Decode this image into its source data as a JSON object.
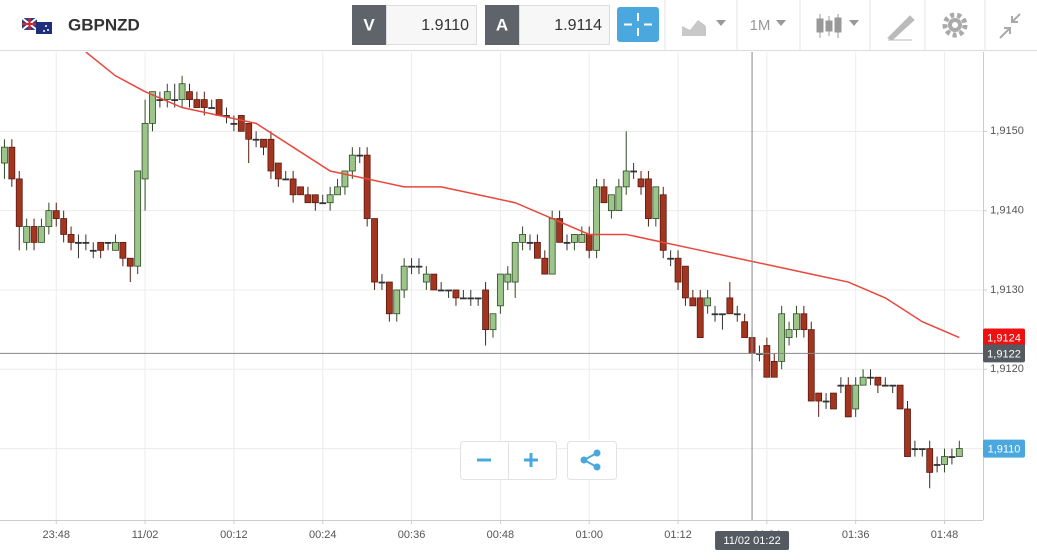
{
  "toolbar": {
    "symbol": "GBPNZD",
    "bid_label": "V",
    "bid": "1.9110",
    "ask_label": "A",
    "ask": "1.9114",
    "timeframe": "1M"
  },
  "chart_data": {
    "type": "candlestick",
    "xlim": [
      -19.6,
      113.2
    ],
    "ylim": [
      1.9101,
      1.916
    ],
    "xticks": [
      {
        "value": -12,
        "label": "23:48"
      },
      {
        "value": 0,
        "label": "11/02"
      },
      {
        "value": 12,
        "label": "00:12"
      },
      {
        "value": 24,
        "label": "00:24"
      },
      {
        "value": 36,
        "label": "00:36"
      },
      {
        "value": 48,
        "label": "00:48"
      },
      {
        "value": 60,
        "label": "01:00"
      },
      {
        "value": 72,
        "label": "01:12"
      },
      {
        "value": 84,
        "label": "01:24"
      },
      {
        "value": 96,
        "label": "01:36"
      },
      {
        "value": 108,
        "label": "01:48"
      }
    ],
    "yticks": [
      {
        "value": 1.911,
        "label": "1,9110"
      },
      {
        "value": 1.912,
        "label": "1,9120"
      },
      {
        "value": 1.913,
        "label": "1,9130"
      },
      {
        "value": 1.914,
        "label": "1,9140"
      },
      {
        "value": 1.915,
        "label": "1,9150"
      }
    ],
    "grid": true,
    "series": [
      {
        "up_color": "#9cc58a",
        "down_color": "#a3341f",
        "x": [
          -19,
          -18,
          -17,
          -16,
          -15,
          -14,
          -13,
          -12,
          -11,
          -10,
          -9,
          -8,
          -7,
          -6,
          -5,
          -4,
          -3,
          -2,
          -1,
          0,
          1,
          2,
          3,
          4,
          5,
          6,
          7,
          8,
          9,
          10,
          11,
          12,
          13,
          14,
          15,
          16,
          17,
          18,
          19,
          20,
          21,
          22,
          23,
          24,
          25,
          26,
          27,
          28,
          29,
          30,
          31,
          32,
          33,
          34,
          35,
          36,
          37,
          38,
          39,
          40,
          41,
          42,
          43,
          44,
          45,
          46,
          47,
          48,
          49,
          50,
          51,
          52,
          53,
          54,
          55,
          56,
          57,
          58,
          59,
          60,
          61,
          62,
          63,
          64,
          65,
          66,
          67,
          68,
          69,
          70,
          71,
          72,
          73,
          74,
          75,
          76,
          77,
          78,
          79,
          80,
          81,
          82,
          83,
          84,
          85,
          86,
          87,
          88,
          89,
          90,
          91,
          92,
          93,
          94,
          95,
          96,
          97,
          98,
          99,
          100,
          101,
          102,
          103,
          104,
          105,
          106,
          107,
          108,
          109,
          110
        ],
        "open": [
          1.9146,
          1.9148,
          1.9144,
          1.9136,
          1.9138,
          1.9136,
          1.9138,
          1.914,
          1.9139,
          1.9137,
          1.9136,
          1.9136,
          1.9135,
          1.9136,
          1.9136,
          1.9135,
          1.9136,
          1.9134,
          1.9133,
          1.9144,
          1.9151,
          1.9154,
          1.9154,
          1.9154,
          1.9154,
          1.9155,
          1.9154,
          1.9154,
          1.9153,
          1.9154,
          1.9152,
          1.9151,
          1.9152,
          1.9151,
          1.9149,
          1.9149,
          1.9149,
          1.9146,
          1.9144,
          1.9144,
          1.9143,
          1.9142,
          1.9142,
          1.9141,
          1.9141,
          1.9142,
          1.9143,
          1.9145,
          1.9147,
          1.9147,
          1.9139,
          1.9131,
          1.9131,
          1.9127,
          1.913,
          1.9133,
          1.9133,
          1.9131,
          1.9132,
          1.913,
          1.913,
          1.913,
          1.9129,
          1.9129,
          1.9129,
          1.913,
          1.9125,
          1.9128,
          1.9131,
          1.9131,
          1.9136,
          1.9136,
          1.9136,
          1.9134,
          1.9132,
          1.9139,
          1.9136,
          1.9136,
          1.9136,
          1.9137,
          1.9135,
          1.9143,
          1.914,
          1.914,
          1.9143,
          1.9145,
          1.9144,
          1.9144,
          1.9139,
          1.9142,
          1.9134,
          1.9134,
          1.9133,
          1.9129,
          1.9129,
          1.9128,
          1.9127,
          1.9127,
          1.9129,
          1.9127,
          1.9126,
          1.9124,
          1.9122,
          1.9123,
          1.9121,
          1.9121,
          1.9124,
          1.9125,
          1.9127,
          1.9125,
          1.9117,
          1.9116,
          1.9117,
          1.9118,
          1.9118,
          1.9115,
          1.9118,
          1.9119,
          1.9119,
          1.9118,
          1.9118,
          1.9118,
          1.9115,
          1.911,
          1.911,
          1.911,
          1.9108,
          1.9108,
          1.9109,
          1.9109
        ],
        "high": [
          1.9149,
          1.9149,
          1.9145,
          1.9139,
          1.9139,
          1.9139,
          1.9141,
          1.9141,
          1.914,
          1.9138,
          1.9137,
          1.9137,
          1.9136,
          1.9136,
          1.9136,
          1.9137,
          1.9136,
          1.9134,
          1.9145,
          1.9154,
          1.9155,
          1.9155,
          1.9156,
          1.9156,
          1.9157,
          1.9156,
          1.9155,
          1.9155,
          1.9154,
          1.9154,
          1.9153,
          1.9152,
          1.9152,
          1.9151,
          1.915,
          1.9149,
          1.915,
          1.9146,
          1.9145,
          1.9145,
          1.9143,
          1.9143,
          1.9142,
          1.9142,
          1.9143,
          1.9144,
          1.9145,
          1.9148,
          1.9148,
          1.9148,
          1.9139,
          1.9132,
          1.9131,
          1.913,
          1.9134,
          1.9134,
          1.9134,
          1.9133,
          1.9132,
          1.9131,
          1.913,
          1.913,
          1.913,
          1.913,
          1.9129,
          1.9131,
          1.9127,
          1.9132,
          1.9133,
          1.9136,
          1.9138,
          1.9137,
          1.9137,
          1.9135,
          1.914,
          1.914,
          1.9137,
          1.9137,
          1.9138,
          1.9138,
          1.9144,
          1.9144,
          1.9142,
          1.9144,
          1.915,
          1.9146,
          1.9145,
          1.9145,
          1.9143,
          1.9143,
          1.9135,
          1.9135,
          1.9133,
          1.913,
          1.913,
          1.913,
          1.9128,
          1.9127,
          1.9131,
          1.9128,
          1.9127,
          1.9125,
          1.9123,
          1.9124,
          1.9122,
          1.9128,
          1.9126,
          1.9128,
          1.9128,
          1.9126,
          1.9117,
          1.9117,
          1.9117,
          1.9119,
          1.9119,
          1.9119,
          1.912,
          1.912,
          1.9119,
          1.9119,
          1.9118,
          1.9118,
          1.9116,
          1.9111,
          1.911,
          1.9111,
          1.9109,
          1.911,
          1.911,
          1.9111
        ],
        "low": [
          1.9144,
          1.9143,
          1.9135,
          1.9135,
          1.9135,
          1.9136,
          1.9137,
          1.9138,
          1.9136,
          1.9135,
          1.9134,
          1.9135,
          1.9134,
          1.9134,
          1.9135,
          1.9135,
          1.9133,
          1.9131,
          1.9132,
          1.914,
          1.915,
          1.9153,
          1.9153,
          1.9153,
          1.9153,
          1.9153,
          1.9153,
          1.9152,
          1.9153,
          1.9152,
          1.9151,
          1.915,
          1.915,
          1.9146,
          1.9148,
          1.9147,
          1.9144,
          1.9143,
          1.9144,
          1.9141,
          1.9142,
          1.9141,
          1.914,
          1.9141,
          1.914,
          1.9142,
          1.9142,
          1.9144,
          1.9146,
          1.9138,
          1.913,
          1.913,
          1.9126,
          1.9126,
          1.9129,
          1.9132,
          1.9132,
          1.913,
          1.913,
          1.913,
          1.9129,
          1.9128,
          1.9129,
          1.9128,
          1.9128,
          1.9123,
          1.9124,
          1.9127,
          1.913,
          1.9129,
          1.9135,
          1.9135,
          1.9134,
          1.9132,
          1.9132,
          1.9136,
          1.9135,
          1.9135,
          1.9136,
          1.9134,
          1.9134,
          1.9141,
          1.9139,
          1.914,
          1.9142,
          1.9144,
          1.9142,
          1.9138,
          1.9138,
          1.9134,
          1.9133,
          1.913,
          1.9128,
          1.9128,
          1.9124,
          1.9127,
          1.9126,
          1.9125,
          1.9127,
          1.9126,
          1.9124,
          1.9119,
          1.9121,
          1.9119,
          1.9119,
          1.912,
          1.9123,
          1.9124,
          1.9124,
          1.9116,
          1.9114,
          1.9115,
          1.9115,
          1.9117,
          1.9114,
          1.9114,
          1.9118,
          1.9118,
          1.9117,
          1.9118,
          1.9117,
          1.9115,
          1.9109,
          1.9109,
          1.9109,
          1.9105,
          1.9107,
          1.9107,
          1.9108,
          1.9109
        ],
        "close": [
          1.9148,
          1.9144,
          1.9138,
          1.9138,
          1.9136,
          1.9138,
          1.914,
          1.9139,
          1.9137,
          1.9136,
          1.9136,
          1.9136,
          1.9135,
          1.9135,
          1.9136,
          1.9136,
          1.9134,
          1.9133,
          1.9145,
          1.9151,
          1.9155,
          1.9154,
          1.9155,
          1.9154,
          1.9156,
          1.9154,
          1.9153,
          1.9153,
          1.9153,
          1.9152,
          1.9152,
          1.9151,
          1.915,
          1.9149,
          1.9149,
          1.9148,
          1.9145,
          1.9144,
          1.9144,
          1.9142,
          1.9142,
          1.9141,
          1.9141,
          1.9141,
          1.9142,
          1.9143,
          1.9145,
          1.9147,
          1.9147,
          1.9139,
          1.9131,
          1.9131,
          1.9127,
          1.913,
          1.9133,
          1.9133,
          1.9133,
          1.9132,
          1.913,
          1.913,
          1.913,
          1.9129,
          1.9129,
          1.9129,
          1.9129,
          1.9125,
          1.9127,
          1.9132,
          1.9132,
          1.9136,
          1.9137,
          1.9136,
          1.9134,
          1.9132,
          1.9139,
          1.9136,
          1.9136,
          1.9137,
          1.9137,
          1.9135,
          1.9143,
          1.9141,
          1.9142,
          1.9143,
          1.9145,
          1.9145,
          1.9143,
          1.9139,
          1.9143,
          1.9135,
          1.9134,
          1.9131,
          1.9129,
          1.9128,
          1.9124,
          1.9129,
          1.9127,
          1.9127,
          1.9127,
          1.9127,
          1.9124,
          1.9122,
          1.9122,
          1.9119,
          1.9119,
          1.9127,
          1.9125,
          1.9127,
          1.9125,
          1.9116,
          1.9116,
          1.9116,
          1.9115,
          1.9118,
          1.9114,
          1.9118,
          1.9119,
          1.9119,
          1.9118,
          1.9118,
          1.9118,
          1.9115,
          1.9109,
          1.911,
          1.911,
          1.9107,
          1.9108,
          1.9109,
          1.9109,
          1.911
        ]
      },
      {
        "type": "line",
        "color": "#e8483c",
        "x": [
          -8,
          -4,
          0,
          5,
          10,
          15,
          20,
          25,
          30,
          35,
          40,
          45,
          50,
          55,
          60,
          65,
          70,
          75,
          80,
          85,
          90,
          95,
          100,
          105,
          110
        ],
        "values": [
          1.916,
          1.9157,
          1.9155,
          1.9153,
          1.9152,
          1.9151,
          1.9148,
          1.9145,
          1.9144,
          1.9143,
          1.9143,
          1.9142,
          1.9141,
          1.9139,
          1.9137,
          1.9137,
          1.9136,
          1.9135,
          1.9134,
          1.9133,
          1.9132,
          1.9131,
          1.9129,
          1.9126,
          1.9124
        ]
      }
    ],
    "price_tags": [
      {
        "value": 1.9124,
        "label": "1,9124",
        "color": "#ee1111"
      },
      {
        "value": 1.9122,
        "label": "1,9122",
        "color": "#555a60"
      },
      {
        "value": 1.911,
        "label": "1,9110",
        "color": "#4aa8de"
      }
    ],
    "crosshair": {
      "x": 82,
      "x_label": "11/02 01:22",
      "y": 1.9122
    }
  }
}
